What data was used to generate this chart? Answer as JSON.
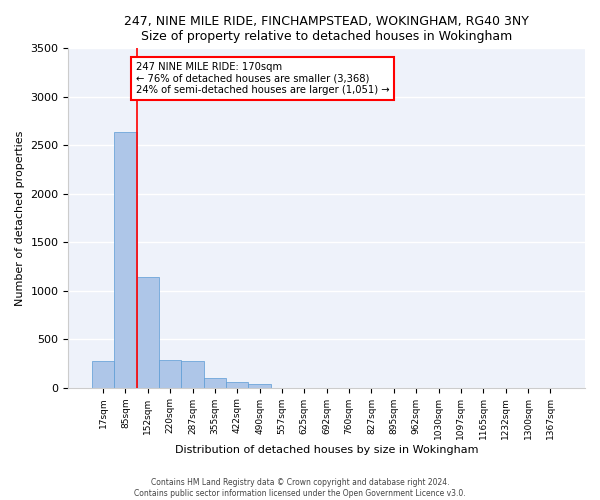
{
  "title": "247, NINE MILE RIDE, FINCHAMPSTEAD, WOKINGHAM, RG40 3NY",
  "subtitle": "Size of property relative to detached houses in Wokingham",
  "xlabel": "Distribution of detached houses by size in Wokingham",
  "ylabel": "Number of detached properties",
  "bar_color": "#aec6e8",
  "bar_edge_color": "#5b9bd5",
  "background_color": "#eef2fa",
  "grid_color": "#ffffff",
  "categories": [
    "17sqm",
    "85sqm",
    "152sqm",
    "220sqm",
    "287sqm",
    "355sqm",
    "422sqm",
    "490sqm",
    "557sqm",
    "625sqm",
    "692sqm",
    "760sqm",
    "827sqm",
    "895sqm",
    "962sqm",
    "1030sqm",
    "1097sqm",
    "1165sqm",
    "1232sqm",
    "1300sqm",
    "1367sqm"
  ],
  "values": [
    270,
    2640,
    1140,
    285,
    275,
    95,
    60,
    35,
    0,
    0,
    0,
    0,
    0,
    0,
    0,
    0,
    0,
    0,
    0,
    0,
    0
  ],
  "ylim": [
    0,
    3500
  ],
  "yticks": [
    0,
    500,
    1000,
    1500,
    2000,
    2500,
    3000,
    3500
  ],
  "property_line_x": 2,
  "bar_width": 1.0,
  "annotation_text_line1": "247 NINE MILE RIDE: 170sqm",
  "annotation_text_line2": "← 76% of detached houses are smaller (3,368)",
  "annotation_text_line3": "24% of semi-detached houses are larger (1,051) →",
  "footer_line1": "Contains HM Land Registry data © Crown copyright and database right 2024.",
  "footer_line2": "Contains public sector information licensed under the Open Government Licence v3.0."
}
